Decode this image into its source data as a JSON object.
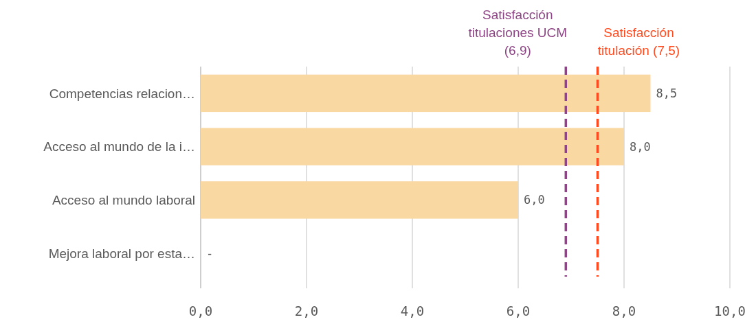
{
  "chart_data": {
    "type": "bar",
    "orientation": "horizontal",
    "categories": [
      "Competencias relacion…",
      "Acceso al mundo de la i…",
      "Acceso al mundo laboral",
      "Mejora laboral por esta…"
    ],
    "values": [
      8.5,
      8.0,
      6.0,
      null
    ],
    "value_labels": [
      "8,5",
      "8,0",
      "6,0",
      "-"
    ],
    "color": "#f9d8a2",
    "xlim": [
      0,
      10
    ],
    "xticks": [
      {
        "value": 0,
        "label": "0,0"
      },
      {
        "value": 2,
        "label": "2,0"
      },
      {
        "value": 4,
        "label": "4,0"
      },
      {
        "value": 6,
        "label": "6,0"
      },
      {
        "value": 8,
        "label": "8,0"
      },
      {
        "value": 10,
        "label": "10,0"
      }
    ],
    "grid": "x",
    "ref_lines": [
      {
        "axis": "x",
        "value": 6.9,
        "label": "Satisfacción titulaciones UCM (6,9)",
        "color": "#8e4585",
        "line_style": "dashed"
      },
      {
        "axis": "x",
        "value": 7.5,
        "label": "Satisfacción titulación (7,5)",
        "color": "#ff4b1f",
        "line_style": "dashed"
      }
    ]
  }
}
